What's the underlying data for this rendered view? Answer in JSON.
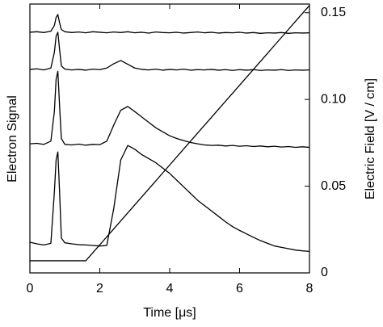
{
  "chart_data": {
    "type": "line",
    "x_label": "Time [μs]",
    "y_label": "Electron Signal",
    "y2_label": "Electric Field [V / cm]",
    "x": [
      0,
      0.2,
      0.4,
      0.6,
      0.7,
      0.75,
      0.8,
      0.85,
      0.9,
      1.0,
      1.2,
      1.4,
      1.6,
      1.8,
      2.0,
      2.2,
      2.4,
      2.6,
      2.8,
      3.0,
      3.2,
      3.4,
      3.6,
      3.8,
      4.0,
      4.2,
      4.4,
      4.6,
      4.8,
      5.0,
      5.2,
      5.4,
      5.6,
      5.8,
      6.0,
      6.2,
      6.4,
      6.6,
      6.8,
      7.0,
      7.2,
      7.4,
      7.6,
      7.8,
      8.0
    ],
    "series": [
      {
        "color": "#000000",
        "values": [
          0.895,
          0.897,
          0.894,
          0.899,
          0.92,
          0.95,
          0.961,
          0.93,
          0.905,
          0.897,
          0.894,
          0.896,
          0.893,
          0.897,
          0.895,
          0.893,
          0.896,
          0.894,
          0.897,
          0.893,
          0.895,
          0.892,
          0.896,
          0.894,
          0.893,
          0.895,
          0.892,
          0.894,
          0.896,
          0.893,
          0.895,
          0.892,
          0.894,
          0.893,
          0.895,
          0.892,
          0.894,
          0.891,
          0.893,
          0.892,
          0.894,
          0.891,
          0.893,
          0.892,
          0.893
        ]
      },
      {
        "color": "#000000",
        "values": [
          0.757,
          0.759,
          0.755,
          0.762,
          0.82,
          0.88,
          0.895,
          0.83,
          0.77,
          0.758,
          0.755,
          0.757,
          0.754,
          0.758,
          0.756,
          0.762,
          0.778,
          0.79,
          0.776,
          0.762,
          0.757,
          0.755,
          0.758,
          0.754,
          0.757,
          0.755,
          0.758,
          0.754,
          0.756,
          0.755,
          0.757,
          0.754,
          0.756,
          0.753,
          0.756,
          0.754,
          0.756,
          0.753,
          0.755,
          0.754,
          0.756,
          0.753,
          0.755,
          0.754,
          0.755
        ]
      },
      {
        "color": "#000000",
        "values": [
          0.48,
          0.482,
          0.478,
          0.49,
          0.6,
          0.72,
          0.75,
          0.62,
          0.5,
          0.478,
          0.476,
          0.479,
          0.475,
          0.478,
          0.477,
          0.49,
          0.55,
          0.605,
          0.619,
          0.6,
          0.58,
          0.56,
          0.54,
          0.525,
          0.51,
          0.5,
          0.492,
          0.485,
          0.48,
          0.476,
          0.474,
          0.475,
          0.472,
          0.474,
          0.471,
          0.473,
          0.47,
          0.472,
          0.469,
          0.471,
          0.468,
          0.47,
          0.467,
          0.469,
          0.467
        ]
      },
      {
        "color": "#000000",
        "values": [
          0.114,
          0.108,
          0.104,
          0.11,
          0.3,
          0.42,
          0.45,
          0.3,
          0.13,
          0.112,
          0.108,
          0.105,
          0.104,
          0.102,
          0.1,
          0.102,
          0.24,
          0.42,
          0.474,
          0.46,
          0.44,
          0.425,
          0.41,
          0.39,
          0.37,
          0.345,
          0.32,
          0.295,
          0.27,
          0.25,
          0.23,
          0.21,
          0.19,
          0.172,
          0.158,
          0.145,
          0.132,
          0.12,
          0.11,
          0.1,
          0.095,
          0.09,
          0.085,
          0.082,
          0.08
        ]
      },
      {
        "color": "#000000",
        "axis": "y2",
        "values": [
          0.007,
          0.007,
          0.007,
          0.007,
          0.007,
          0.007,
          0.007,
          0.007,
          0.007,
          0.007,
          0.007,
          0.007,
          0.007,
          0.0116,
          0.0162,
          0.0208,
          0.0254,
          0.03,
          0.0346,
          0.0392,
          0.0438,
          0.0484,
          0.053,
          0.0576,
          0.0622,
          0.0668,
          0.0714,
          0.076,
          0.0806,
          0.0852,
          0.0898,
          0.0944,
          0.099,
          0.1036,
          0.1082,
          0.1128,
          0.1174,
          0.122,
          0.1266,
          0.1312,
          0.1358,
          0.1404,
          0.145,
          0.1496,
          0.1542
        ]
      }
    ],
    "xlim": [
      0,
      8
    ],
    "xticks": [
      0,
      2,
      4,
      6,
      8
    ],
    "ylim": [
      0,
      1
    ],
    "y2lim": [
      0,
      0.155
    ],
    "y2ticks": [
      0,
      0.05,
      {
        "value": 0.1,
        "label": "0.10"
      },
      0.15
    ]
  }
}
